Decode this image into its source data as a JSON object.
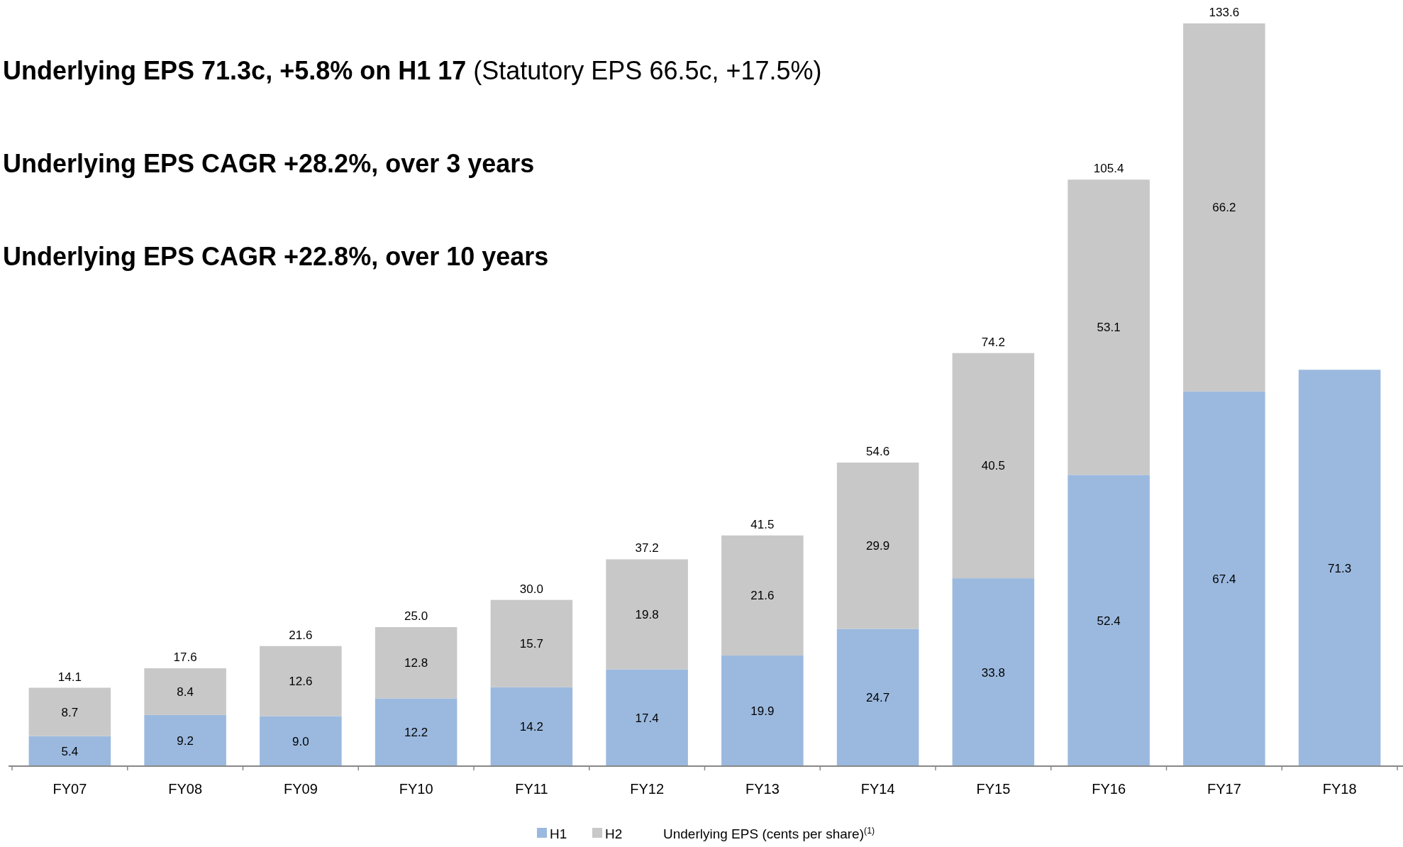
{
  "chart_data": {
    "type": "bar",
    "stacked": true,
    "legend": "bottom",
    "xlabel": "Underlying EPS (cents per share)$^{(1)}$",
    "annotations": [
      "Underlying EPS 71.3c, +5.8% on H1 17",
      "(Statutory EPS 66.5c, +17.5%)",
      "Underlying EPS CAGR +28.2%, over 3 years",
      "Underlying EPS CAGR +22.8%, over 10 years"
    ],
    "categories": [
      "FY07",
      "FY08",
      "FY09",
      "FY10",
      "FY11",
      "FY12",
      "FY13",
      "FY14",
      "FY15",
      "FY16",
      "FY17",
      "FY18"
    ],
    "series": [
      {
        "name": "H1",
        "color": "#9bb9df",
        "values": [
          5.4,
          9.2,
          9.0,
          12.2,
          14.2,
          17.4,
          19.9,
          24.7,
          33.8,
          52.4,
          67.4,
          71.3
        ],
        "value_labels": [
          "5.4",
          "9.2",
          "9.0",
          "12.2",
          "14.2",
          "17.4",
          "19.9",
          "24.7",
          "33.8",
          "52.4",
          "67.4",
          "71.3"
        ]
      },
      {
        "name": "H2",
        "color": "#c8c8c8",
        "values": [
          8.7,
          8.4,
          12.6,
          12.8,
          15.7,
          19.8,
          21.6,
          29.9,
          40.5,
          53.1,
          66.2,
          null
        ],
        "value_labels": [
          "8.7",
          "8.4",
          "12.6",
          "12.8",
          "15.7",
          "19.8",
          "21.6",
          "29.9",
          "40.5",
          "53.1",
          "66.2",
          null
        ]
      }
    ],
    "totals": [
      "14.1",
      "17.6",
      "21.6",
      "25.0",
      "30.0",
      "37.2",
      "41.5",
      "54.6",
      "74.2",
      "105.4",
      "133.6",
      null
    ]
  }
}
